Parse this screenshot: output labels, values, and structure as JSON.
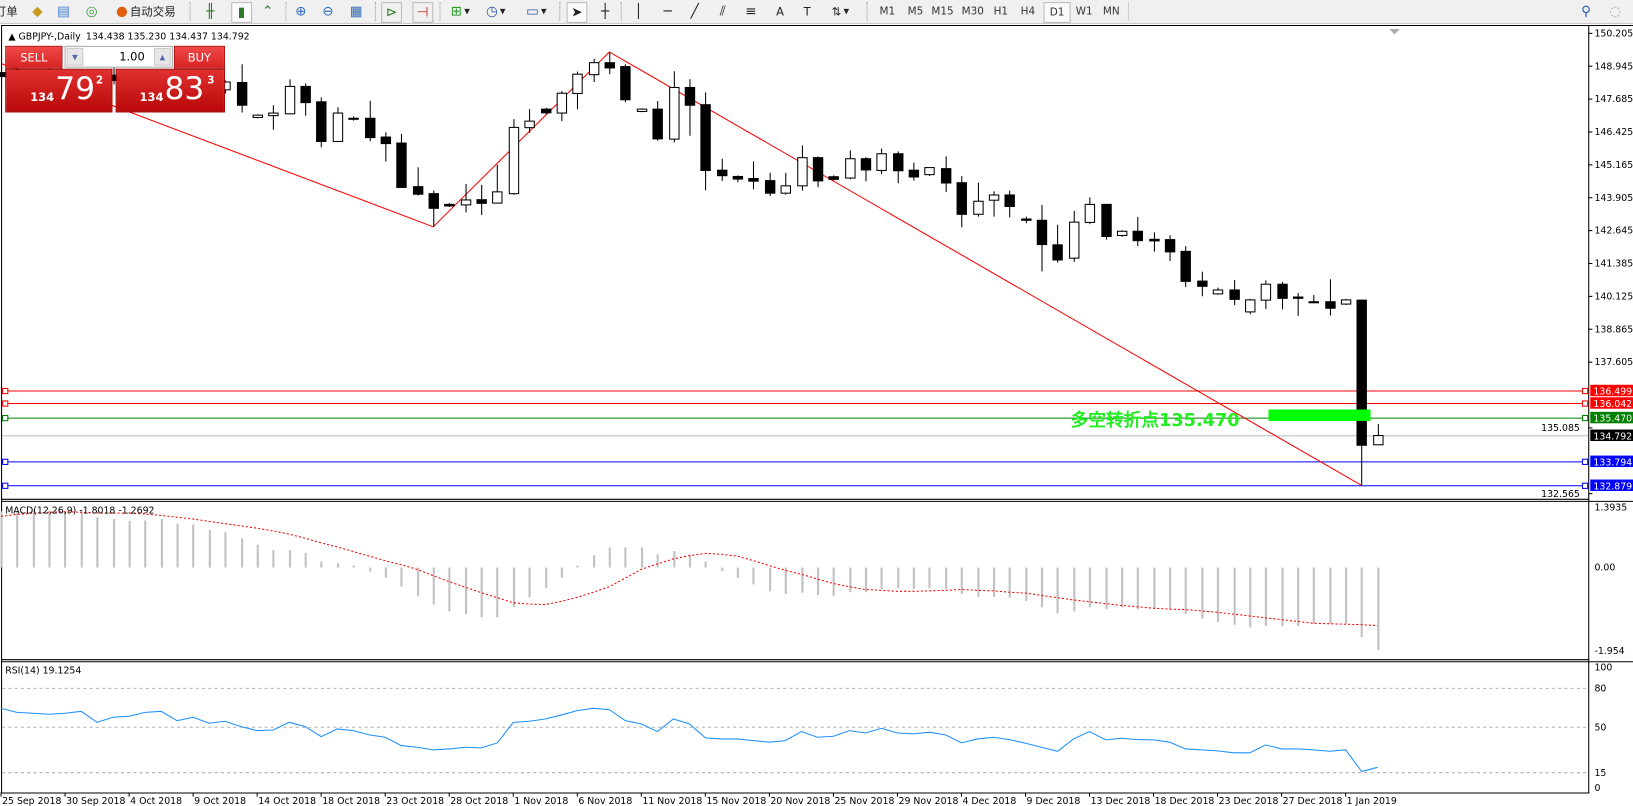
{
  "toolbar": {
    "order_label": "订单",
    "auto_trade_label": "自动交易",
    "timeframes": [
      "M1",
      "M5",
      "M15",
      "M30",
      "H1",
      "H4",
      "D1",
      "W1",
      "MN"
    ],
    "selected_timeframe": "D1"
  },
  "chart": {
    "symbol": "GBPJPY-,Daily",
    "ohlc": "134.438 135.230 134.437 134.792"
  },
  "trade_panel": {
    "sell_label": "SELL",
    "buy_label": "BUY",
    "lots": "1.00",
    "sell_price": {
      "prefix": "134",
      "big": "79",
      "sup": "2"
    },
    "buy_price": {
      "prefix": "134",
      "big": "83",
      "sup": "3"
    }
  },
  "price_axis": {
    "ticks": [
      "150.205",
      "148.945",
      "147.685",
      "146.425",
      "145.165",
      "143.905",
      "142.645",
      "141.385",
      "140.125",
      "138.865",
      "137.605",
      "135.085",
      "132.565"
    ]
  },
  "levels": [
    {
      "price": "136.499",
      "color": "#ff0000"
    },
    {
      "price": "136.042",
      "color": "#ff0000"
    },
    {
      "price": "135.470",
      "color": "#008000"
    },
    {
      "price": "134.792",
      "color": "#000000",
      "line_color": "#c0c0c0"
    },
    {
      "price": "133.794",
      "color": "#0000ff"
    },
    {
      "price": "132.879",
      "color": "#0000ff"
    }
  ],
  "annotation": {
    "text": "多空转折点135.470",
    "color": "#22ee22",
    "bar_color": "#00ff00"
  },
  "colors": {
    "zigzag": "#ff0000",
    "macd_hist": "#c0c0c0",
    "macd_signal": "#ff0000",
    "rsi": "#1e90ff"
  },
  "candles": [
    [
      148.7,
      149.05,
      148.4,
      148.55
    ],
    [
      148.55,
      148.9,
      148.1,
      148.25
    ],
    [
      148.25,
      148.6,
      147.9,
      148.45
    ],
    [
      148.45,
      148.85,
      148.2,
      148.35
    ],
    [
      148.35,
      148.7,
      147.95,
      148.1
    ],
    [
      148.1,
      148.5,
      147.7,
      148.3
    ],
    [
      148.3,
      148.75,
      148.05,
      148.6
    ],
    [
      148.6,
      148.95,
      148.25,
      148.4
    ],
    [
      148.4,
      148.65,
      147.8,
      147.95
    ],
    [
      147.95,
      148.3,
      147.6,
      148.15
    ],
    [
      148.15,
      148.55,
      147.85,
      148.05
    ],
    [
      148.05,
      148.35,
      147.55,
      147.75
    ],
    [
      147.75,
      148.2,
      147.45,
      148.05
    ],
    [
      148.05,
      148.45,
      147.85,
      148.1
    ],
    [
      148.04,
      148.4,
      147.9,
      148.34
    ],
    [
      148.32,
      149.02,
      147.17,
      147.45
    ],
    [
      146.98,
      147.1,
      146.95,
      147.07
    ],
    [
      147.05,
      147.45,
      146.51,
      147.15
    ],
    [
      147.12,
      148.44,
      147.1,
      148.17
    ],
    [
      148.17,
      148.29,
      147.05,
      147.55
    ],
    [
      147.58,
      147.75,
      145.84,
      146.06
    ],
    [
      146.06,
      147.37,
      146.05,
      147.15
    ],
    [
      146.95,
      147.02,
      146.86,
      146.93
    ],
    [
      146.95,
      147.62,
      146.07,
      146.21
    ],
    [
      146.23,
      146.41,
      145.29,
      145.98
    ],
    [
      146.0,
      146.35,
      144.28,
      144.3
    ],
    [
      144.33,
      145.07,
      143.99,
      144.04
    ],
    [
      144.06,
      144.18,
      142.79,
      143.5
    ],
    [
      143.65,
      143.7,
      143.55,
      143.59
    ],
    [
      143.63,
      144.43,
      143.34,
      143.82
    ],
    [
      143.83,
      144.4,
      143.24,
      143.69
    ],
    [
      143.7,
      145.17,
      143.68,
      144.13
    ],
    [
      144.06,
      146.92,
      144.02,
      146.6
    ],
    [
      146.59,
      147.3,
      146.39,
      146.84
    ],
    [
      147.3,
      147.35,
      147.1,
      147.16
    ],
    [
      147.15,
      147.99,
      146.84,
      147.91
    ],
    [
      147.9,
      148.74,
      147.3,
      148.64
    ],
    [
      148.62,
      149.23,
      148.34,
      149.08
    ],
    [
      149.08,
      149.49,
      148.64,
      148.88
    ],
    [
      148.93,
      149.02,
      147.56,
      147.66
    ],
    [
      147.21,
      147.33,
      147.18,
      147.3
    ],
    [
      147.3,
      147.61,
      146.09,
      146.16
    ],
    [
      146.15,
      148.75,
      146.03,
      148.13
    ],
    [
      148.13,
      148.45,
      146.28,
      147.45
    ],
    [
      147.47,
      147.94,
      144.19,
      144.95
    ],
    [
      144.96,
      145.4,
      144.55,
      144.75
    ],
    [
      144.72,
      144.76,
      144.5,
      144.62
    ],
    [
      144.64,
      145.3,
      144.23,
      144.54
    ],
    [
      144.56,
      144.86,
      143.97,
      144.08
    ],
    [
      144.08,
      144.86,
      144.02,
      144.36
    ],
    [
      144.36,
      145.91,
      144.18,
      145.44
    ],
    [
      145.44,
      145.49,
      144.31,
      144.55
    ],
    [
      144.71,
      144.76,
      144.56,
      144.61
    ],
    [
      144.66,
      145.72,
      144.61,
      145.4
    ],
    [
      145.4,
      145.46,
      144.54,
      144.97
    ],
    [
      144.95,
      145.79,
      144.81,
      145.59
    ],
    [
      145.59,
      145.68,
      144.46,
      144.94
    ],
    [
      144.96,
      145.25,
      144.56,
      144.7
    ],
    [
      144.79,
      145.06,
      144.74,
      145.06
    ],
    [
      145.02,
      145.49,
      144.12,
      144.47
    ],
    [
      144.48,
      144.73,
      142.77,
      143.27
    ],
    [
      143.27,
      144.48,
      143.18,
      143.77
    ],
    [
      143.81,
      144.15,
      143.18,
      144.01
    ],
    [
      144.01,
      144.18,
      143.15,
      143.57
    ],
    [
      143.09,
      143.18,
      142.93,
      143.04
    ],
    [
      143.04,
      143.63,
      141.08,
      142.11
    ],
    [
      142.1,
      142.87,
      141.42,
      141.52
    ],
    [
      141.59,
      143.4,
      141.45,
      142.97
    ],
    [
      142.96,
      143.92,
      142.89,
      143.65
    ],
    [
      143.65,
      143.66,
      142.3,
      142.42
    ],
    [
      142.46,
      142.66,
      142.41,
      142.62
    ],
    [
      142.62,
      143.17,
      142.05,
      142.26
    ],
    [
      142.31,
      142.58,
      141.84,
      142.25
    ],
    [
      142.3,
      142.47,
      141.48,
      141.83
    ],
    [
      141.85,
      142.05,
      140.48,
      140.7
    ],
    [
      140.71,
      141.07,
      140.13,
      140.51
    ],
    [
      140.22,
      140.46,
      140.19,
      140.37
    ],
    [
      140.37,
      140.75,
      139.79,
      140.01
    ],
    [
      139.53,
      140.03,
      139.44,
      139.99
    ],
    [
      139.98,
      140.74,
      139.64,
      140.59
    ],
    [
      140.59,
      140.68,
      139.63,
      140.05
    ],
    [
      140.1,
      140.25,
      139.38,
      140.05
    ],
    [
      139.92,
      140.18,
      139.86,
      139.9
    ],
    [
      139.92,
      140.78,
      139.39,
      139.67
    ],
    [
      139.83,
      140.03,
      139.8,
      139.99
    ],
    [
      139.98,
      140.0,
      132.879,
      134.42
    ],
    [
      134.438,
      135.23,
      134.437,
      134.792
    ]
  ],
  "zigzag": [
    {
      "bar": 0,
      "price": 149.05
    },
    {
      "bar": 27,
      "price": 142.79
    },
    {
      "bar": 38,
      "price": 149.49
    },
    {
      "bar": 85,
      "price": 132.879
    }
  ],
  "macd": {
    "label": "MACD(12,26,9) -1.8018 -1.2692",
    "axis": [
      "1.3935",
      "0.00",
      "-1.954"
    ],
    "histogram": [
      1.23,
      1.23,
      1.27,
      1.25,
      1.23,
      1.22,
      1.1,
      1.06,
      1.02,
      1.03,
      1.06,
      0.96,
      0.94,
      0.82,
      0.77,
      0.64,
      0.5,
      0.38,
      0.38,
      0.32,
      0.13,
      0.09,
      0.04,
      -0.09,
      -0.22,
      -0.42,
      -0.63,
      -0.81,
      -0.96,
      -1.02,
      -1.09,
      -1.09,
      -0.86,
      -0.65,
      -0.45,
      -0.22,
      0.04,
      0.27,
      0.44,
      0.44,
      0.44,
      0.29,
      0.36,
      0.28,
      0.13,
      -0.08,
      -0.23,
      -0.37,
      -0.52,
      -0.58,
      -0.55,
      -0.6,
      -0.62,
      -0.54,
      -0.54,
      -0.47,
      -0.45,
      -0.47,
      -0.45,
      -0.47,
      -0.58,
      -0.64,
      -0.64,
      -0.66,
      -0.73,
      -0.87,
      -1.0,
      -0.96,
      -0.87,
      -0.91,
      -0.87,
      -0.91,
      -0.91,
      -0.92,
      -1.02,
      -1.12,
      -1.19,
      -1.25,
      -1.31,
      -1.28,
      -1.28,
      -1.28,
      -1.23,
      -1.23,
      -1.23,
      -1.52,
      -1.8
    ],
    "signal": [
      1.12,
      1.16,
      1.19,
      1.21,
      1.22,
      1.21,
      1.19,
      1.19,
      1.19,
      1.17,
      1.14,
      1.1,
      1.06,
      1.01,
      0.96,
      0.91,
      0.86,
      0.8,
      0.73,
      0.64,
      0.54,
      0.45,
      0.35,
      0.25,
      0.15,
      0.06,
      -0.04,
      -0.18,
      -0.31,
      -0.43,
      -0.55,
      -0.66,
      -0.77,
      -0.8,
      -0.81,
      -0.74,
      -0.65,
      -0.54,
      -0.42,
      -0.23,
      -0.04,
      0.08,
      0.19,
      0.26,
      0.31,
      0.29,
      0.25,
      0.15,
      0.04,
      -0.06,
      -0.15,
      -0.25,
      -0.35,
      -0.42,
      -0.48,
      -0.5,
      -0.52,
      -0.52,
      -0.51,
      -0.5,
      -0.48,
      -0.5,
      -0.51,
      -0.54,
      -0.56,
      -0.61,
      -0.66,
      -0.71,
      -0.75,
      -0.79,
      -0.83,
      -0.86,
      -0.89,
      -0.91,
      -0.92,
      -0.95,
      -0.98,
      -1.02,
      -1.06,
      -1.1,
      -1.14,
      -1.18,
      -1.22,
      -1.23,
      -1.24,
      -1.25,
      -1.27
    ]
  },
  "rsi": {
    "label": "RSI(14) 19.1254",
    "axis": [
      "100",
      "80",
      "50",
      "15",
      "0"
    ],
    "levels": [
      80,
      50,
      15
    ],
    "values": [
      64.6,
      61.5,
      60.8,
      60.0,
      60.8,
      62.3,
      53.8,
      57.7,
      58.5,
      61.5,
      62.3,
      55.1,
      57.7,
      53.1,
      54.6,
      50.5,
      47.4,
      47.9,
      53.8,
      50.5,
      42.8,
      48.7,
      47.4,
      44.1,
      42.3,
      35.9,
      34.6,
      32.6,
      33.3,
      34.6,
      34.1,
      37.9,
      53.8,
      54.6,
      56.4,
      59.5,
      62.8,
      64.6,
      63.6,
      55.1,
      52.6,
      46.7,
      56.4,
      52.6,
      41.8,
      41.0,
      41.0,
      39.7,
      38.5,
      39.7,
      46.7,
      42.3,
      43.1,
      47.4,
      45.6,
      49.2,
      45.6,
      44.9,
      46.2,
      44.1,
      38.0,
      41.0,
      42.3,
      40.5,
      37.7,
      34.6,
      31.5,
      41.0,
      46.7,
      40.3,
      41.5,
      40.5,
      40.3,
      38.5,
      33.3,
      32.6,
      31.8,
      30.3,
      30.3,
      36.4,
      33.3,
      33.3,
      32.6,
      31.5,
      32.6,
      15.9,
      19.13
    ]
  },
  "dates": [
    "25 Sep 2018",
    "30 Sep 2018",
    "4 Oct 2018",
    "9 Oct 2018",
    "14 Oct 2018",
    "18 Oct 2018",
    "23 Oct 2018",
    "28 Oct 2018",
    "1 Nov 2018",
    "6 Nov 2018",
    "11 Nov 2018",
    "15 Nov 2018",
    "20 Nov 2018",
    "25 Nov 2018",
    "29 Nov 2018",
    "4 Dec 2018",
    "9 Dec 2018",
    "13 Dec 2018",
    "18 Dec 2018",
    "23 Dec 2018",
    "27 Dec 2018",
    "1 Jan 2019"
  ]
}
